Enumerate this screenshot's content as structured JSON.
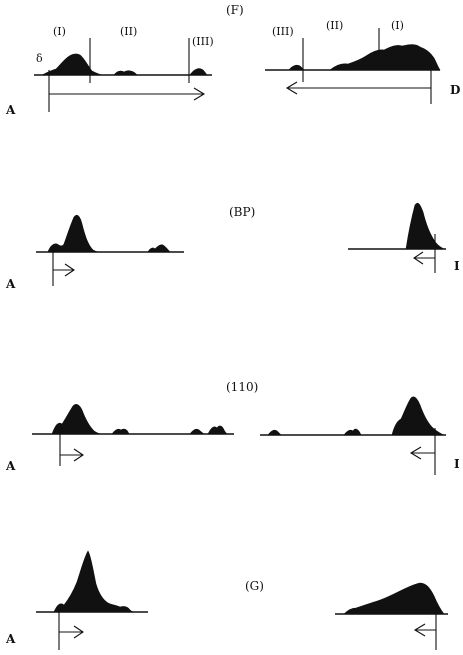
{
  "panels": [
    {
      "title": "(F)",
      "left_endpoint": "A",
      "right_endpoint": "D",
      "left_regions": [
        "(I)",
        "(II)",
        "(III)"
      ],
      "right_regions": [
        "(III)",
        "(II)",
        "(I)"
      ],
      "left_marker": "δ"
    },
    {
      "title": "(BP)",
      "left_endpoint": "A",
      "right_endpoint": "I"
    },
    {
      "title": "(110)",
      "left_endpoint": "A",
      "right_endpoint": "I"
    },
    {
      "title": "(G)",
      "left_endpoint": "A"
    }
  ]
}
